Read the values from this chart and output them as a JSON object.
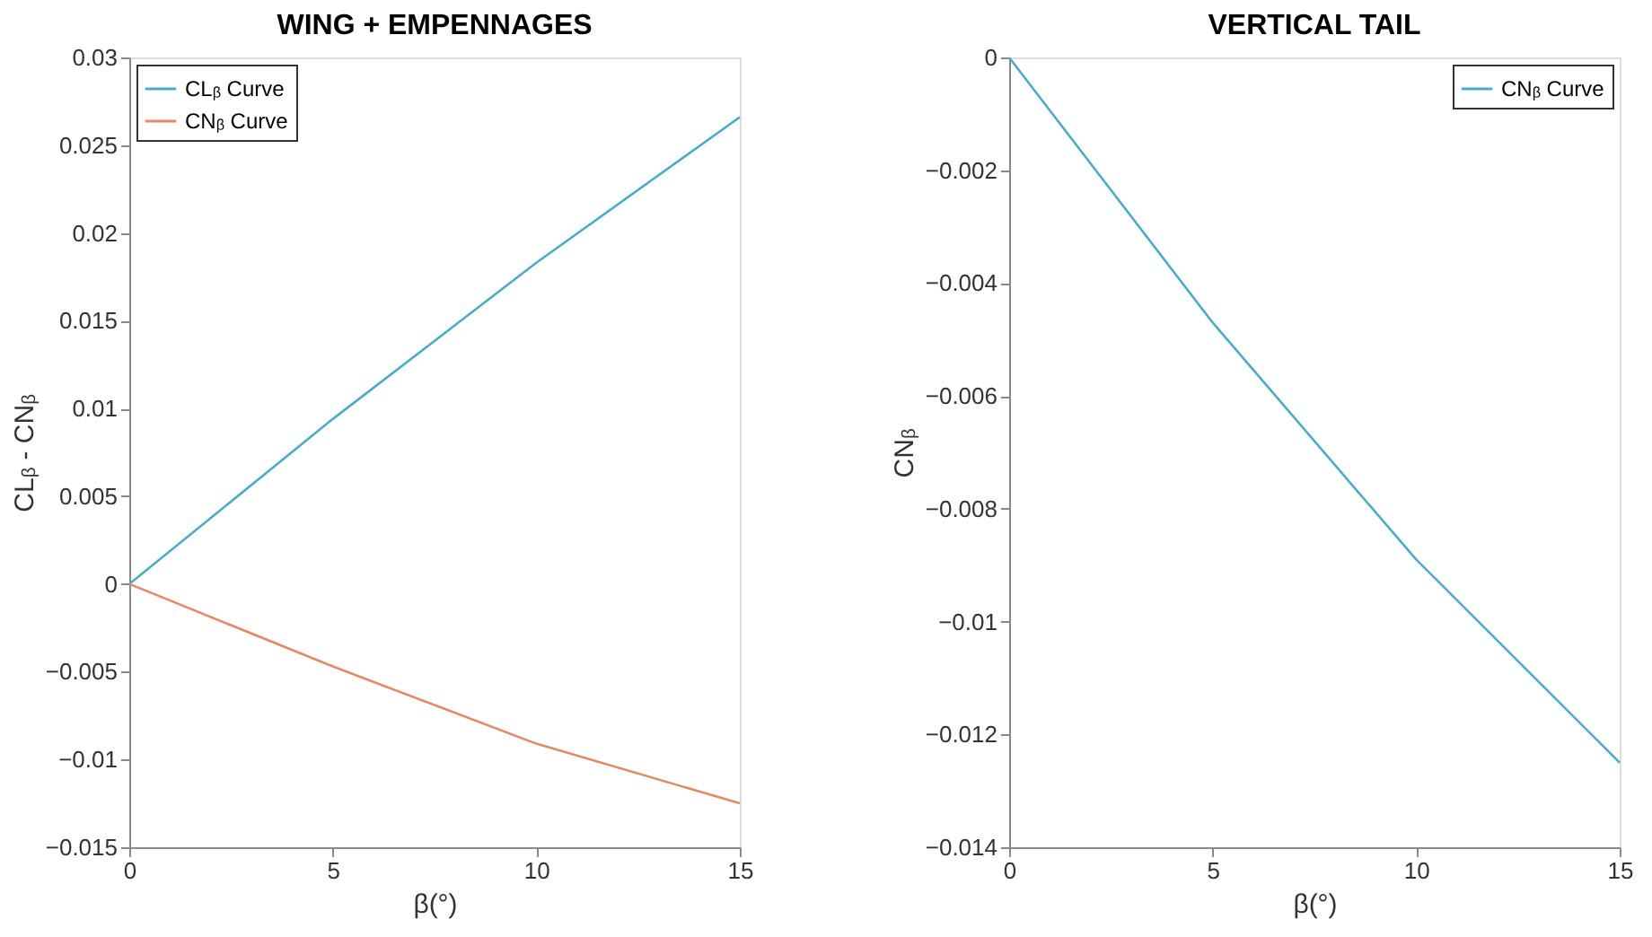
{
  "chart_data": [
    {
      "type": "line",
      "title": "WING + EMPENNAGES",
      "xlabel": "β(°)",
      "ylabel": "CLᵦ - CNᵦ",
      "x": [
        0,
        5,
        10,
        15
      ],
      "series": [
        {
          "name": "CLᵦ Curve",
          "color": "#4bacc6",
          "values": [
            0,
            0.0094,
            0.0183,
            0.0266
          ]
        },
        {
          "name": "CNᵦ Curve",
          "color": "#e08a66",
          "values": [
            0,
            -0.0047,
            -0.0091,
            -0.0125
          ]
        }
      ],
      "xlim": [
        0,
        15
      ],
      "xticks": [
        0,
        5,
        10,
        15
      ],
      "ylim": [
        -0.015,
        0.03
      ],
      "yticks": [
        -0.015,
        -0.01,
        -0.005,
        0,
        0.005,
        0.01,
        0.015,
        0.02,
        0.025,
        0.03
      ],
      "legend": "top left",
      "grid": false
    },
    {
      "type": "line",
      "title": "VERTICAL TAIL",
      "xlabel": "β(°)",
      "ylabel": "CNᵦ",
      "x": [
        0,
        5,
        10,
        15
      ],
      "series": [
        {
          "name": "CNᵦ Curve",
          "color": "#4bacc6",
          "values": [
            0,
            -0.0047,
            -0.0089,
            -0.0125
          ]
        }
      ],
      "xlim": [
        0,
        15
      ],
      "xticks": [
        0,
        5,
        10,
        15
      ],
      "ylim": [
        -0.014,
        0
      ],
      "yticks": [
        -0.014,
        -0.012,
        -0.01,
        -0.008,
        -0.006,
        -0.004,
        -0.002,
        0
      ],
      "legend": "top right",
      "grid": false
    }
  ]
}
